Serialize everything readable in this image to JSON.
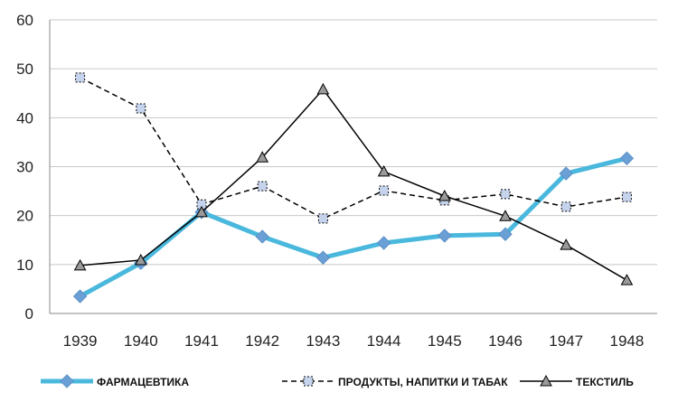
{
  "chart_data": {
    "type": "line",
    "title": "",
    "xlabel": "",
    "ylabel": "",
    "ylim": [
      0,
      60
    ],
    "yticks": [
      "0",
      "10",
      "20",
      "30",
      "40",
      "50",
      "60"
    ],
    "categories": [
      "1939",
      "1940",
      "1941",
      "1942",
      "1943",
      "1944",
      "1945",
      "1946",
      "1947",
      "1948"
    ],
    "grid": true,
    "legend_position": "bottom",
    "series": [
      {
        "name": "ФАРМАЦЕВТИКА",
        "color": "#4ab8dd",
        "style": "solid-thick",
        "marker": "diamond",
        "values": [
          3.5,
          10.3,
          20.7,
          15.7,
          11.4,
          14.4,
          15.9,
          16.2,
          28.6,
          31.7
        ]
      },
      {
        "name": "ПРОДУКТЫ, НАПИТКИ И ТАБАК",
        "color": "#000000",
        "style": "dashed",
        "marker": "square",
        "marker_color": "#c5d3ec",
        "values": [
          48.2,
          41.9,
          22.3,
          26.0,
          19.4,
          25.1,
          23.1,
          24.4,
          21.8,
          23.8
        ]
      },
      {
        "name": "ТЕКСТИЛЬ",
        "color": "#000000",
        "style": "solid",
        "marker": "triangle",
        "marker_color": "#9a9a9a",
        "values": [
          9.8,
          10.9,
          20.7,
          31.9,
          45.8,
          29.0,
          24.0,
          19.9,
          14.0,
          6.8
        ]
      }
    ]
  }
}
